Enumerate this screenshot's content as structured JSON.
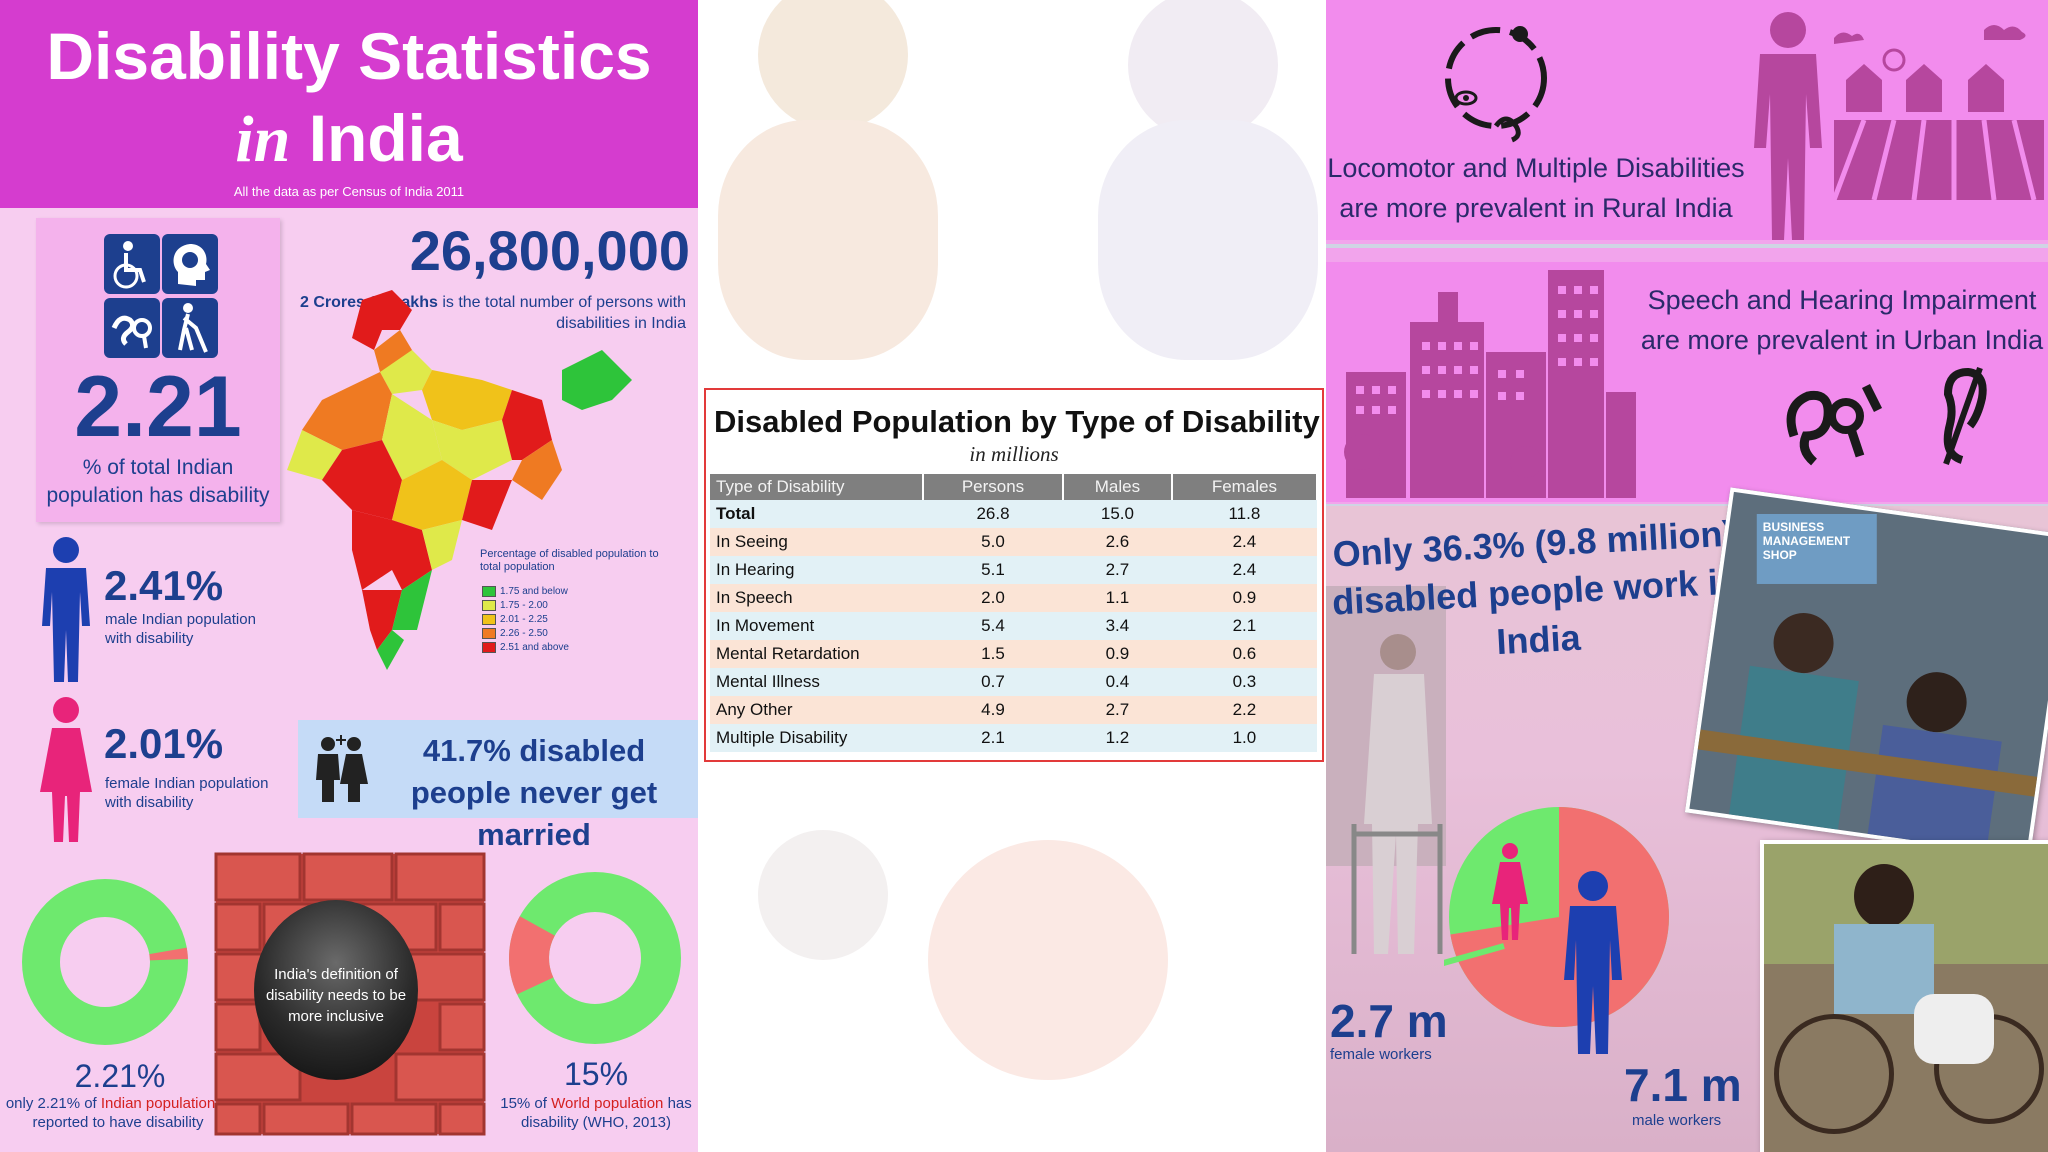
{
  "left": {
    "title_line1": "Disability Statistics",
    "title_in": "in",
    "title_india": "India",
    "subtitle": "All the data as per Census of India 2011",
    "big_pct": "2.21",
    "big_pct_desc": "% of total Indian population has disability",
    "total_number": "26,800,000",
    "total_bold": "2 Crores 68 Lakhs",
    "total_desc": " is the total number of persons with disabilities in India",
    "legend": {
      "title": "Percentage of disabled population to total population",
      "items": [
        {
          "label": "1.75 and below",
          "color": "#2ec43a"
        },
        {
          "label": "1.75 - 2.00",
          "color": "#dfe94a"
        },
        {
          "label": "2.01 - 2.25",
          "color": "#f0c21a"
        },
        {
          "label": "2.26 - 2.50",
          "color": "#ef7a22"
        },
        {
          "label": "2.51 and above",
          "color": "#e11b1b"
        }
      ]
    },
    "male_pct": "2.41%",
    "male_desc": "male Indian population with disability",
    "female_pct": "2.01%",
    "female_desc": "female Indian population with disability",
    "married_text": "41.7% disabled people never get married",
    "donut_india_pct_value": 2.21,
    "donut_india_big": "2.21%",
    "donut_india_pre": "only 2.21% of ",
    "donut_india_red": "Indian population",
    "donut_india_post": " is reported to have disability",
    "wall_text": "India's definition of disability needs to be more inclusive",
    "donut_world_pct_value": 15,
    "donut_world_big": "15%",
    "donut_world_pre": "15% of ",
    "donut_world_red": "World population",
    "donut_world_post": " has disability (WHO, 2013)"
  },
  "table": {
    "title": "Disabled Population by Type of Disability",
    "subtitle": "in millions",
    "headers": [
      "Type of Disability",
      "Persons",
      "Males",
      "Females"
    ],
    "rows": [
      [
        "Total",
        "26.8",
        "15.0",
        "11.8"
      ],
      [
        "In Seeing",
        "5.0",
        "2.6",
        "2.4"
      ],
      [
        "In Hearing",
        "5.1",
        "2.7",
        "2.4"
      ],
      [
        "In Speech",
        "2.0",
        "1.1",
        "0.9"
      ],
      [
        "In Movement",
        "5.4",
        "3.4",
        "2.1"
      ],
      [
        "Mental Retardation",
        "1.5",
        "0.9",
        "0.6"
      ],
      [
        "Mental Illness",
        "0.7",
        "0.4",
        "0.3"
      ],
      [
        "Any Other",
        "4.9",
        "2.7",
        "2.2"
      ],
      [
        "Multiple Disability",
        "2.1",
        "1.2",
        "1.0"
      ]
    ]
  },
  "right": {
    "rural_text": "Locomotor and Multiple Disabilities are more prevalent in Rural India",
    "urban_text": "Speech and Hearing Impairment are more prevalent in Urban India",
    "work_text": "Only 36.3% (9.8 million) disabled people work in India",
    "photo_sign": "BUSINESS MANAGEMENT SHOP",
    "female_workers_value": 2.7,
    "male_workers_value": 7.1,
    "female_big": "2.7 m",
    "female_sm": "female workers",
    "male_big": "7.1 m",
    "male_sm": "male workers"
  },
  "colors": {
    "header_magenta": "#d53ccf",
    "navy": "#1d3f8e",
    "donut_green": "#6ee96e",
    "donut_red": "#f27070",
    "female_pink": "#e8247a"
  }
}
